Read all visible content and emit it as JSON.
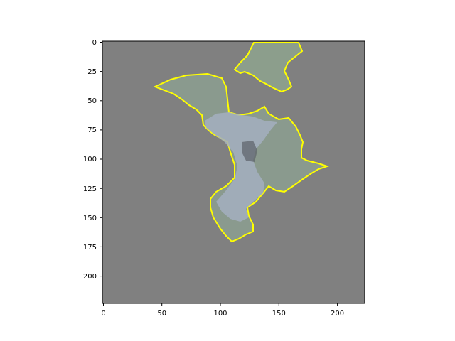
{
  "figure": {
    "background": "#ffffff",
    "masked_region_color": "#808080",
    "outline_color": "#ffff00"
  },
  "axes": {
    "x_ticks": [
      "0",
      "50",
      "100",
      "150",
      "200"
    ],
    "y_ticks": [
      "0",
      "25",
      "50",
      "75",
      "100",
      "125",
      "150",
      "175",
      "200"
    ],
    "xlim": [
      0,
      224
    ],
    "ylim": [
      224,
      0
    ]
  },
  "image": {
    "content": "segmentation overlay of a bird (moth-like wings spread) on a gray masked background",
    "regions": [
      {
        "name": "main-body-wings",
        "fill": "#8a9a8e"
      },
      {
        "name": "upper-wing-fragment",
        "fill": "#8c9e8c"
      }
    ]
  }
}
